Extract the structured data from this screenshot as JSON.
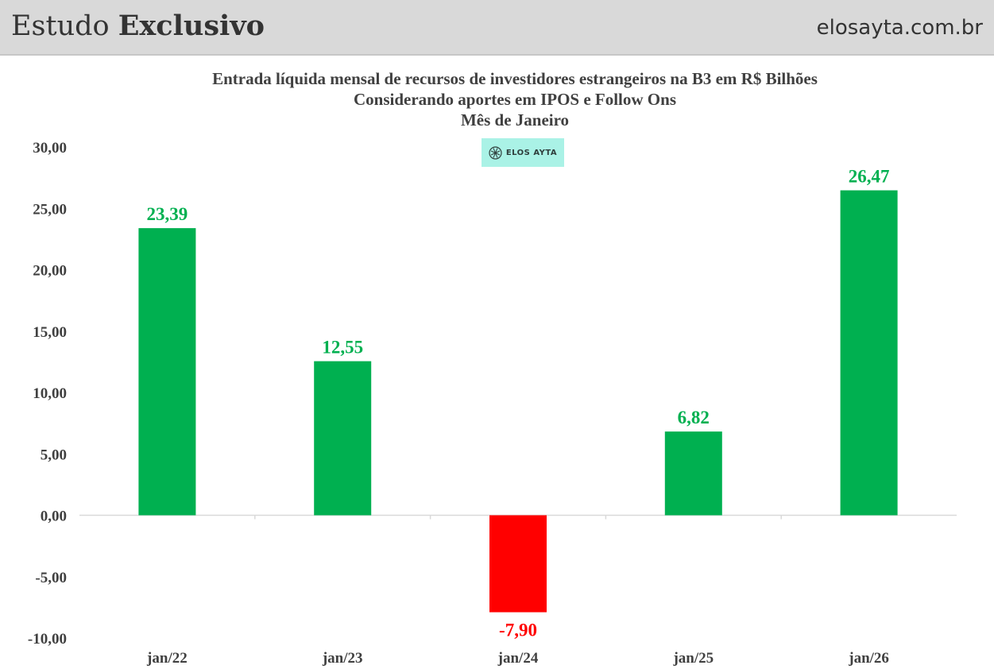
{
  "header": {
    "brand_light": "Estudo",
    "brand_bold": "Exclusivo",
    "site": "elosayta.com.br"
  },
  "logo": {
    "text": "ELOS AYTA",
    "icon": "elos-ayta-logo-icon",
    "color": "#aaf2e6"
  },
  "chart_data": {
    "type": "bar",
    "title": "Entrada líquida mensal de recursos de investidores estrangeiros na B3 em R$ Bilhões",
    "subtitle": "Considerando aportes em IPOS e Follow Ons",
    "subtitle2": "Mês de Janeiro",
    "categories": [
      "jan/22",
      "jan/23",
      "jan/24",
      "jan/25",
      "jan/26"
    ],
    "values": [
      23.39,
      12.55,
      -7.9,
      6.82,
      26.47
    ],
    "value_labels": [
      "23,39",
      "12,55",
      "-7,90",
      "6,82",
      "26,47"
    ],
    "yticks": [
      "30,00",
      "25,00",
      "20,00",
      "15,00",
      "10,00",
      "5,00",
      "0,00",
      "-5,00",
      "-10,00"
    ],
    "ylim": [
      -10,
      30
    ],
    "xlabel": "",
    "ylabel": "",
    "grid": false,
    "colors": {
      "positive": "#00b050",
      "negative": "#ff0000",
      "text": "#404040"
    }
  }
}
